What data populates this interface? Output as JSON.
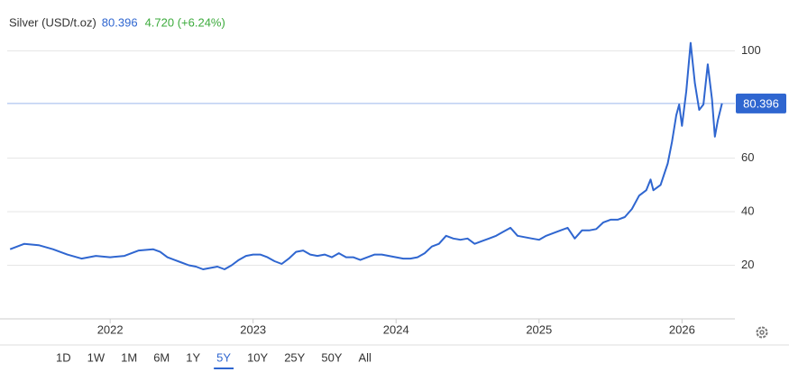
{
  "chart_data": {
    "type": "line",
    "title": "Silver (USD/t.oz)",
    "last_value": 80.396,
    "change": "4.720 (+6.24%)",
    "color": "#2f66d0",
    "x": [
      2021.3,
      2021.4,
      2021.5,
      2021.6,
      2021.7,
      2021.8,
      2021.9,
      2022.0,
      2022.1,
      2022.15,
      2022.2,
      2022.3,
      2022.35,
      2022.4,
      2022.45,
      2022.5,
      2022.55,
      2022.6,
      2022.65,
      2022.7,
      2022.75,
      2022.8,
      2022.85,
      2022.9,
      2022.95,
      2023.0,
      2023.05,
      2023.1,
      2023.15,
      2023.2,
      2023.25,
      2023.3,
      2023.35,
      2023.4,
      2023.45,
      2023.5,
      2023.55,
      2023.6,
      2023.65,
      2023.7,
      2023.75,
      2023.8,
      2023.85,
      2023.9,
      2023.95,
      2024.0,
      2024.05,
      2024.1,
      2024.15,
      2024.2,
      2024.25,
      2024.3,
      2024.35,
      2024.4,
      2024.45,
      2024.5,
      2024.55,
      2024.6,
      2024.65,
      2024.7,
      2024.75,
      2024.8,
      2024.85,
      2024.9,
      2024.95,
      2025.0,
      2025.05,
      2025.1,
      2025.15,
      2025.2,
      2025.25,
      2025.3,
      2025.35,
      2025.4,
      2025.45,
      2025.5,
      2025.55,
      2025.6,
      2025.65,
      2025.7,
      2025.75,
      2025.78,
      2025.8,
      2025.85,
      2025.9,
      2025.93,
      2025.96,
      2025.98,
      2026.0,
      2026.03,
      2026.06,
      2026.09,
      2026.12,
      2026.15,
      2026.18,
      2026.21,
      2026.23,
      2026.25,
      2026.28
    ],
    "values": [
      26,
      28,
      27.5,
      26,
      24,
      22.5,
      23.5,
      23,
      23.5,
      24.5,
      25.5,
      26,
      25,
      23,
      22,
      21,
      20,
      19.5,
      18.5,
      19,
      19.5,
      18.5,
      20,
      22,
      23.5,
      24,
      24,
      23,
      21.5,
      20.5,
      22.5,
      25,
      25.5,
      24,
      23.5,
      24,
      23,
      24.5,
      23,
      23,
      22,
      23,
      24,
      24,
      23.5,
      23,
      22.5,
      22.5,
      23,
      24.5,
      27,
      28,
      31,
      30,
      29.5,
      30,
      28,
      29,
      30,
      31,
      32.5,
      34,
      31,
      30.5,
      30,
      29.5,
      31,
      32,
      33,
      34,
      30,
      33,
      33,
      33.5,
      36,
      37,
      37,
      38,
      41,
      46,
      48,
      52,
      48,
      50,
      58,
      66,
      76,
      80,
      72,
      85,
      103,
      88,
      78,
      80,
      95,
      82,
      68,
      74,
      80.396
    ],
    "xlim": [
      2021.28,
      2026.37
    ],
    "ylim": [
      0,
      119
    ],
    "xticks": [
      2022,
      2023,
      2024,
      2025,
      2026
    ],
    "yticks": [
      20,
      40,
      60,
      100
    ],
    "grid": true,
    "ranges": [
      "1D",
      "1W",
      "1M",
      "6M",
      "1Y",
      "5Y",
      "10Y",
      "25Y",
      "50Y",
      "All"
    ],
    "selected_range": "5Y"
  }
}
